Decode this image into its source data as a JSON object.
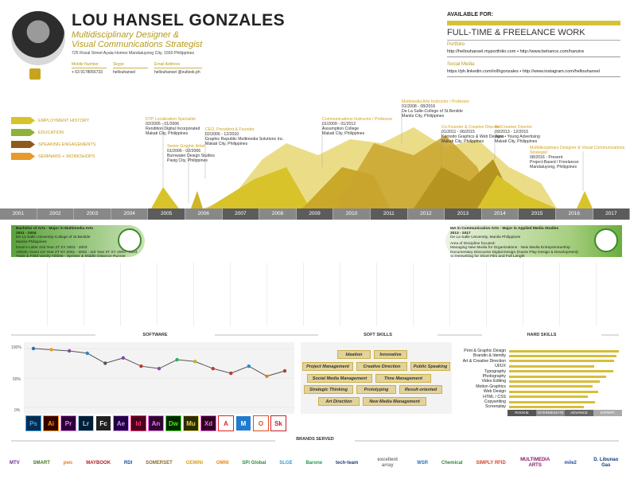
{
  "profile": {
    "name": "LOU HANSEL GONZALES",
    "title_line1": "Multidisciplinary Designer &",
    "title_line2": "Visual Communications Strategist",
    "address": "725 Rosal Street Ayala Homes Mandaluyong City, 1550 Philippines",
    "mobile_label": "Mobile Number",
    "mobile": "+ 63 9178056733",
    "skype_label": "Skype",
    "skype": "hellouhansel",
    "email_label": "Email Address",
    "email": "hellouhansel @outlook.ph"
  },
  "availability": {
    "heading": "AVAILABLE FOR:",
    "type": "FULL-TIME & FREELANCE WORK",
    "portfolio_label": "Portfolio",
    "portfolio_urls": "http://hellouhansel.myportfolio.com  •  http://www.behance.com/hanzire",
    "social_label": "Social Media",
    "social_urls": "https://ph.linkedin.com/in/lhgonzales  •  http://www.instagram.com/hellouhansel"
  },
  "legend": [
    {
      "label": "EMPLOYMENT HISTORY",
      "color": "#d8c32b"
    },
    {
      "label": "EDUCATION",
      "color": "#8fb23a"
    },
    {
      "label": "SPEAKING ENGAGEMENTS",
      "color": "#8e5a1c"
    },
    {
      "label": "SEMINARS + WORKSHOPS",
      "color": "#e89a2a"
    }
  ],
  "employment": [
    {
      "role": "DTP Localization Specialist",
      "dates": "02/2005 - 01/2006",
      "org": "Rendition Digital Incorporated",
      "place": "Makati City, Philippines"
    },
    {
      "role": "Senior Graphic Artist",
      "dates": "01/2006 - 02/2006",
      "org": "Burnwater Design Studios",
      "place": "Pasig City, Philippines"
    },
    {
      "role": "CEO, President & Founder",
      "dates": "02/2006 - 12/2010",
      "org": "Graphic Republic Multimedia Solutions Inc.",
      "place": "Makati City, Philippines"
    },
    {
      "role": "Communications Instructor / Professor",
      "dates": "01/2009 - 01/2012",
      "org": "Assumption College",
      "place": "Makati City, Philippines"
    },
    {
      "role": "Multimedia Arts Instructor / Professor",
      "dates": "01/2008 - 08/2016",
      "org": "De La Salle-College of St.Benilde",
      "place": "Manila City, Philippines"
    },
    {
      "role": "Co-Founder & Creative Director",
      "dates": "01/2011 - 06/2015",
      "org": "Komodo Graphics & Web Designs",
      "place": "Makati City, Philippines"
    },
    {
      "role": "Art/Creative Director",
      "dates": "09/2013 - 12/2015",
      "org": "Jase • Young Advertising",
      "place": "Makati City, Philippines"
    },
    {
      "role": "Multidisciplinary Designer & Visual Communications Strategist",
      "dates": "08/2016 - Present",
      "org": "Project-Based / Freelancer",
      "place": "Mandaluyong, Philippines"
    }
  ],
  "years": [
    "2001",
    "2002",
    "2003",
    "2004",
    "2005",
    "2006",
    "2007",
    "2008",
    "2009",
    "2010",
    "2011",
    "2012",
    "2013",
    "2014",
    "2015",
    "2016",
    "2017"
  ],
  "education": [
    {
      "lines": [
        "Bachelor of Arts - Major in Multimedia Arts",
        "2001 - 2004",
        "De La Salle University-College of St.Benilde",
        "Manila Philippines",
        "",
        "Dean's Lister 2nd Year 2T SY 2002 - 2003",
        "Athletic Grant 1st Year 2T SY 2001 - 2002 - 3rd Year 2T SY 2003 - 2004",
        "Track & Field Varsity Athlete - Sprinter & Middle Distance Runner"
      ]
    },
    {
      "lines": [
        "MA in Communication Arts - Major in Applied Media Studies",
        "2013 - 2017",
        "De La Salle University, Manila Philippines",
        "",
        "Area of Discipline focused:",
        "Managing New Media for Organizations · New Media Entrepreneurship",
        "Documentary Discourse Digital Design (Game Play Design & Development)",
        "Screenwriting for Short Film and Full Length"
      ]
    }
  ],
  "software": {
    "heading": "SOFTWARE",
    "y_ticks": [
      "100%",
      "50%",
      "0%"
    ],
    "icons": [
      {
        "abbr": "Ps",
        "color": "#0a2b4a",
        "fg": "#31a8ff"
      },
      {
        "abbr": "Ai",
        "color": "#330000",
        "fg": "#ff9a00"
      },
      {
        "abbr": "Pr",
        "color": "#2a0034",
        "fg": "#e77cff"
      },
      {
        "abbr": "Lr",
        "color": "#001d34",
        "fg": "#add5ec"
      },
      {
        "abbr": "Fc",
        "color": "#222222",
        "fg": "#ffffff"
      },
      {
        "abbr": "Ae",
        "color": "#1f0040",
        "fg": "#d291ff"
      },
      {
        "abbr": "Id",
        "color": "#49021f",
        "fg": "#ff3366"
      },
      {
        "abbr": "An",
        "color": "#2b0a2e",
        "fg": "#ff6fff"
      },
      {
        "abbr": "Dw",
        "color": "#072401",
        "fg": "#35fa00"
      },
      {
        "abbr": "Mu",
        "color": "#2d2a07",
        "fg": "#ddd64a"
      },
      {
        "abbr": "Xd",
        "color": "#2e001f",
        "fg": "#ff61f6"
      },
      {
        "abbr": "Acr",
        "color": "#ffffff",
        "fg": "#e0261b"
      },
      {
        "abbr": "M",
        "color": "#1f7ad0",
        "fg": "#ffffff"
      },
      {
        "abbr": "Off",
        "color": "#ffffff",
        "fg": "#e64a19"
      },
      {
        "abbr": "Sk",
        "color": "#ffffff",
        "fg": "#c8202a"
      }
    ]
  },
  "chart_data": {
    "type": "line",
    "title": "SOFTWARE",
    "categories": [
      "Ps",
      "Ai",
      "Pr",
      "Lr",
      "Fc",
      "Ae",
      "Id",
      "An",
      "Dw",
      "Mu",
      "Xd",
      "Acr",
      "M",
      "Off",
      "Sk"
    ],
    "values": [
      100,
      98,
      96,
      92,
      75,
      84,
      70,
      66,
      81,
      78,
      66,
      58,
      70,
      53,
      62
    ],
    "ylim": [
      0,
      100
    ],
    "point_colors": [
      "#2d6fb6",
      "#e89a2a",
      "#8e44ad",
      "#2e86c1",
      "#555555",
      "#8e44ad",
      "#c0392b",
      "#8e44ad",
      "#27ae60",
      "#c0b020",
      "#c0392b",
      "#c0392b",
      "#2e86c1",
      "#e67e22",
      "#c0392b"
    ]
  },
  "soft_skills": {
    "heading": "SOFT SKILLS",
    "items": [
      "Ideation",
      "Innovative",
      "Project Management",
      "Creative Direction",
      "Public Speaking",
      "Social Media Management",
      "Time Management",
      "Strategic Thinking",
      "Prototyping",
      "Result-oriented",
      "Art Direction",
      "New Media Management"
    ]
  },
  "hard_skills": {
    "heading": "HARD SKILLS",
    "items": [
      {
        "label": "Print & Graphic Design",
        "value": 97
      },
      {
        "label": "Brandin & Identity",
        "value": 95
      },
      {
        "label": "Art & Creative Direction",
        "value": 93
      },
      {
        "label": "UI/UX",
        "value": 75
      },
      {
        "label": "Typography",
        "value": 92
      },
      {
        "label": "Photography",
        "value": 86
      },
      {
        "label": "Video Editing",
        "value": 80
      },
      {
        "label": "Motion Graphics",
        "value": 74
      },
      {
        "label": "Web Design",
        "value": 79
      },
      {
        "label": "HTML / CSS",
        "value": 70
      },
      {
        "label": "Copywriting",
        "value": 76
      },
      {
        "label": "Screenplay",
        "value": 66
      }
    ],
    "levels": [
      "ROOKIE",
      "INTERMEDIATE",
      "ADVANCE",
      "EXPERT"
    ]
  },
  "brands": {
    "heading": "BRANDS SERVED",
    "items": [
      "MTV",
      "SMART",
      "pwc",
      "MAYBOOK",
      "RDI",
      "SOMERSET",
      "GEMINI",
      "OMNI",
      "SPi Global",
      "SLGE",
      "Barone",
      "tech-team",
      "excellent array",
      "WSR",
      "Chemical",
      "SIMPLY RFID",
      "MULTIMEDIA ARTS",
      "mile2",
      "D. Libunao Gas"
    ]
  }
}
